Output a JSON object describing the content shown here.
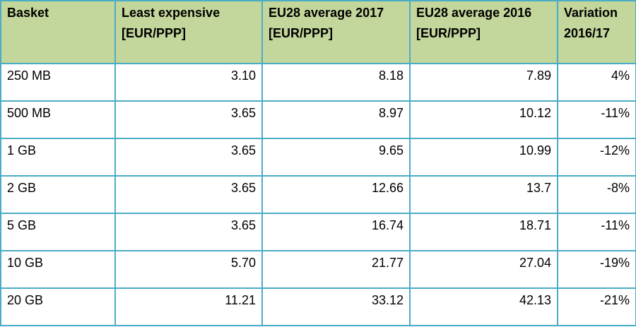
{
  "table": {
    "headers": [
      {
        "line1": "Basket",
        "line2": ""
      },
      {
        "line1": "Least expensive",
        "line2": "[EUR/PPP]"
      },
      {
        "line1": "EU28 average 2017",
        "line2": "[EUR/PPP]"
      },
      {
        "line1": "EU28 average 2016",
        "line2": "[EUR/PPP]"
      },
      {
        "line1": "Variation",
        "line2": "2016/17"
      }
    ],
    "rows": [
      [
        "250 MB",
        "3.10",
        "8.18",
        "7.89",
        "4%"
      ],
      [
        "500 MB",
        "3.65",
        "8.97",
        "10.12",
        "-11%"
      ],
      [
        "1 GB",
        "3.65",
        "9.65",
        "10.99",
        "-12%"
      ],
      [
        "2 GB",
        "3.65",
        "12.66",
        "13.7",
        "-8%"
      ],
      [
        "5 GB",
        "3.65",
        "16.74",
        "18.71",
        "-11%"
      ],
      [
        "10 GB",
        "5.70",
        "21.77",
        "27.04",
        "-19%"
      ],
      [
        "20 GB",
        "11.21",
        "33.12",
        "42.13",
        "-21%"
      ]
    ],
    "colors": {
      "header_background": "#c3d69b",
      "border": "#4bacc6"
    }
  }
}
